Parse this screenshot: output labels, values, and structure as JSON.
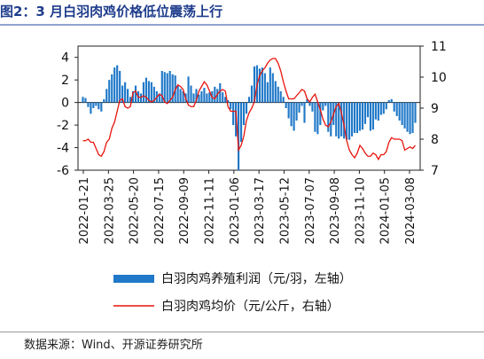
{
  "page": {
    "title": "图2：3 月白羽肉鸡价格低位震荡上行",
    "source": "数据来源：Wind、开源证券研究所"
  },
  "chart_data": {
    "type": "bar+line",
    "x_ticks": [
      "2022-01-21",
      "2022-03-25",
      "2022-05-20",
      "2022-07-15",
      "2022-09-09",
      "2022-11-11",
      "2023-01-06",
      "2023-03-17",
      "2023-05-12",
      "2023-07-07",
      "2023-09-08",
      "2023-11-10",
      "2024-01-05",
      "2024-03-08"
    ],
    "left_axis": {
      "ticks": [
        -6,
        -4,
        -2,
        0,
        2,
        4
      ],
      "range": [
        -6,
        5
      ]
    },
    "right_axis": {
      "ticks": [
        7,
        8,
        9,
        10,
        11
      ],
      "range": [
        7,
        11
      ]
    },
    "colors": {
      "bar": "#1f78c8",
      "line": "#e8140c"
    },
    "series": [
      {
        "name": "白羽肉鸡养殖利润（元/羽，左轴）",
        "axis": "left",
        "type": "bar",
        "values": [
          0.5,
          0.4,
          -0.4,
          -1.0,
          -0.5,
          -0.3,
          -0.6,
          -0.8,
          0.3,
          1.2,
          2.0,
          2.5,
          3.1,
          3.3,
          2.8,
          1.5,
          1.8,
          1.2,
          0.5,
          1.0,
          1.5,
          1.0,
          0.8,
          1.8,
          2.2,
          1.9,
          1.8,
          1.4,
          1.0,
          0.8,
          2.8,
          2.7,
          2.6,
          2.8,
          2.5,
          2.4,
          1.5,
          1.2,
          1.0,
          0.8,
          2.3,
          1.5,
          0.8,
          1.2,
          0.7,
          1.0,
          1.3,
          0.8,
          0.9,
          1.0,
          1.4,
          1.2,
          1.7,
          0.9,
          0.5,
          0.2,
          -0.6,
          -2.0,
          -3.0,
          -6.0,
          -3.5,
          -2.0,
          -1.0,
          0.5,
          1.5,
          3.2,
          3.3,
          3.0,
          3.1,
          2.6,
          1.8,
          3.1,
          2.6,
          1.9,
          1.4,
          1.0,
          0.5,
          -0.5,
          -1.4,
          -2.1,
          -2.5,
          -1.6,
          -0.9,
          -0.3,
          -1.8,
          0.3,
          -0.3,
          -0.8,
          -2.6,
          -2.8,
          -2.0,
          -0.7,
          -0.3,
          -2.6,
          -3.0,
          -2.0,
          -3.0,
          -3.2,
          -3.0,
          -3.2,
          -3.3,
          -3.3,
          -3.0,
          -2.7,
          -2.7,
          -2.5,
          -2.4,
          -1.9,
          -1.3,
          -2.5,
          -2.4,
          -1.5,
          -1.6,
          -1.1,
          -1.0,
          -0.6,
          0.2,
          0.3,
          -0.8,
          -1.2,
          -1.6,
          -2.0,
          -2.3,
          -2.6,
          -2.8,
          -2.7,
          -1.8
        ]
      },
      {
        "name": "白羽肉鸡均价（元/公斤，右轴）",
        "axis": "right",
        "type": "line",
        "values": [
          7.95,
          7.95,
          8.0,
          7.9,
          7.9,
          7.7,
          7.5,
          7.45,
          7.6,
          7.9,
          8.0,
          8.35,
          8.55,
          8.9,
          9.25,
          9.3,
          9.05,
          9.0,
          9.05,
          9.5,
          9.55,
          9.35,
          9.35,
          9.4,
          9.35,
          9.25,
          9.2,
          9.25,
          9.35,
          9.45,
          9.4,
          9.2,
          9.15,
          9.25,
          9.35,
          9.6,
          9.75,
          9.7,
          9.6,
          9.3,
          9.1,
          9.05,
          9.05,
          9.25,
          9.55,
          9.7,
          9.85,
          9.75,
          9.55,
          9.35,
          9.3,
          9.45,
          9.55,
          9.6,
          9.55,
          9.05,
          8.9,
          8.9,
          8.9,
          7.65,
          7.8,
          8.1,
          8.6,
          8.85,
          9.0,
          9.2,
          9.75,
          10.05,
          10.2,
          10.3,
          10.45,
          10.55,
          10.6,
          10.6,
          10.45,
          10.2,
          9.85,
          9.55,
          9.3,
          9.3,
          9.3,
          9.4,
          9.5,
          9.6,
          9.55,
          9.3,
          9.2,
          9.35,
          9.45,
          9.2,
          8.95,
          8.65,
          8.45,
          8.4,
          8.55,
          8.8,
          9.05,
          9.15,
          8.85,
          8.45,
          7.95,
          7.65,
          7.5,
          7.4,
          7.55,
          7.8,
          7.7,
          7.55,
          7.45,
          7.45,
          7.55,
          7.5,
          7.35,
          7.5,
          7.5,
          7.6,
          7.9,
          8.05,
          8.0,
          8.0,
          8.0,
          7.95,
          7.65,
          7.7,
          7.75,
          7.7,
          7.8
        ]
      }
    ]
  }
}
